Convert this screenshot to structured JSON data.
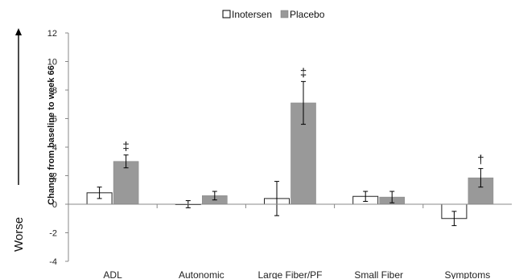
{
  "chart_data": {
    "type": "bar",
    "categories": [
      "ADL",
      "Autonomic",
      "Large Fiber/PF",
      "Small Fiber",
      "Symptoms"
    ],
    "series": [
      {
        "name": "Inotersen",
        "color": "#ffffff",
        "values": [
          0.8,
          0.0,
          0.4,
          0.55,
          -1.0
        ],
        "error": [
          0.4,
          0.25,
          1.2,
          0.35,
          0.5
        ]
      },
      {
        "name": "Placebo",
        "color": "#999999",
        "values": [
          3.0,
          0.6,
          7.1,
          0.5,
          1.85
        ],
        "error": [
          0.45,
          0.3,
          1.5,
          0.4,
          0.65
        ]
      }
    ],
    "significance": [
      "‡",
      "",
      "‡",
      "",
      "†"
    ],
    "xlabel": "",
    "ylabel": "Change from baseline to week 66",
    "side_label": "Worse",
    "ylim": [
      -4,
      12
    ],
    "yticks": [
      "-4",
      "-2",
      "0",
      "2",
      "4",
      "6",
      "8",
      "10",
      "12"
    ],
    "legend_position": "top",
    "grid": false
  }
}
